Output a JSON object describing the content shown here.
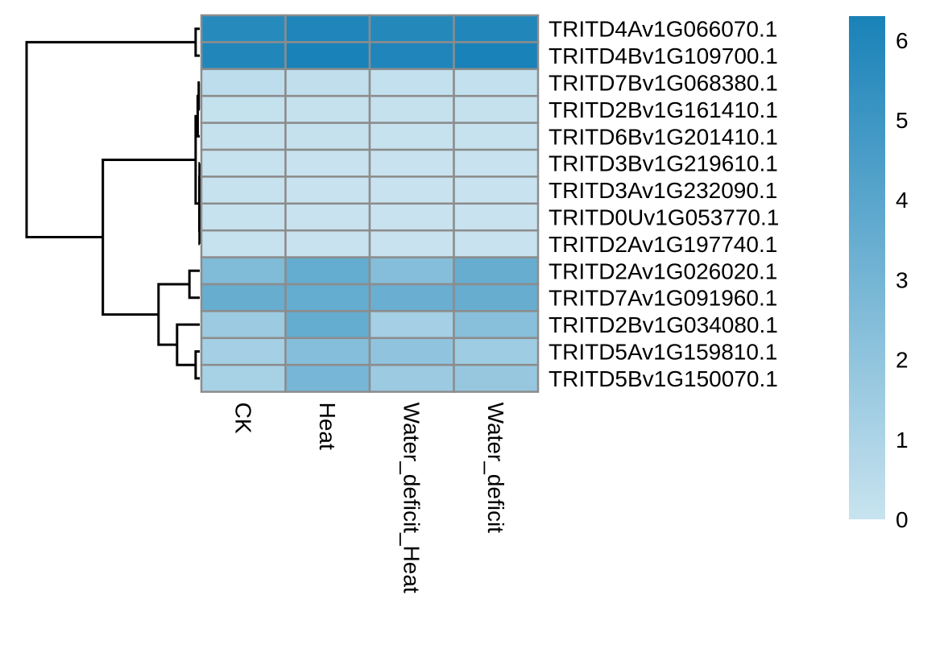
{
  "chart_data": {
    "type": "heatmap",
    "columns": [
      "CK",
      "Heat",
      "Water_deficit_Heat",
      "Water_deficit"
    ],
    "rows": [
      "TRITD4Av1G066070.1",
      "TRITD4Bv1G109700.1",
      "TRITD7Bv1G068380.1",
      "TRITD2Bv1G161410.1",
      "TRITD6Bv1G201410.1",
      "TRITD3Bv1G219610.1",
      "TRITD3Av1G232090.1",
      "TRITD0Uv1G053770.1",
      "TRITD2Av1G197740.1",
      "TRITD2Av1G026020.1",
      "TRITD7Av1G091960.1",
      "TRITD2Bv1G034080.1",
      "TRITD5Av1G159810.1",
      "TRITD5Bv1G150070.1"
    ],
    "values": [
      [
        5.8,
        6.1,
        5.9,
        6.0
      ],
      [
        6.0,
        6.3,
        6.1,
        6.3
      ],
      [
        0.4,
        0.3,
        0.2,
        0.2
      ],
      [
        0.15,
        0.1,
        0.1,
        0.1
      ],
      [
        0.1,
        0.1,
        0.05,
        0.05
      ],
      [
        0.05,
        0.0,
        0.0,
        0.0
      ],
      [
        0.05,
        0.0,
        0.0,
        0.0
      ],
      [
        0.05,
        0.0,
        0.0,
        0.0
      ],
      [
        0.05,
        0.0,
        0.0,
        0.0
      ],
      [
        2.6,
        3.6,
        2.4,
        3.5
      ],
      [
        3.5,
        3.6,
        3.4,
        3.5
      ],
      [
        1.6,
        3.6,
        1.3,
        2.3
      ],
      [
        1.3,
        2.4,
        2.0,
        1.5
      ],
      [
        1.2,
        2.9,
        1.6,
        1.8
      ]
    ],
    "colorscale": {
      "low": "#c8e3ef",
      "high": "#1982b8",
      "min": 0,
      "max": 6.3
    },
    "legend_ticks": [
      "0",
      "1",
      "2",
      "3",
      "4",
      "5",
      "6"
    ],
    "dendrogram": {
      "tree": [
        [
          [
            0,
            1
          ],
          [
            [
              [
                [
                  2,
                  3
                ],
                4
              ],
              [
                [
                  5,
                  6
                ],
                [
                  7,
                  8
                ]
              ]
            ],
            [
              [
                9,
                10
              ],
              [
                11,
                [
                  12,
                  13
                ]
              ]
            ]
          ]
        ]
      ],
      "heights": {
        "n_0_1": 0.02,
        "n_2_3": 0.005,
        "n_23_4": 0.01,
        "n_5_6": 0.001,
        "n_7_8": 0.001,
        "n_56_78": 0.002,
        "n_234_5678": 0.02,
        "n_9_10": 0.05,
        "n_12_13": 0.02,
        "n_11_1213": 0.11,
        "n_910_111213": 0.2,
        "n_low_high": 0.47,
        "root": 0.84
      }
    }
  }
}
